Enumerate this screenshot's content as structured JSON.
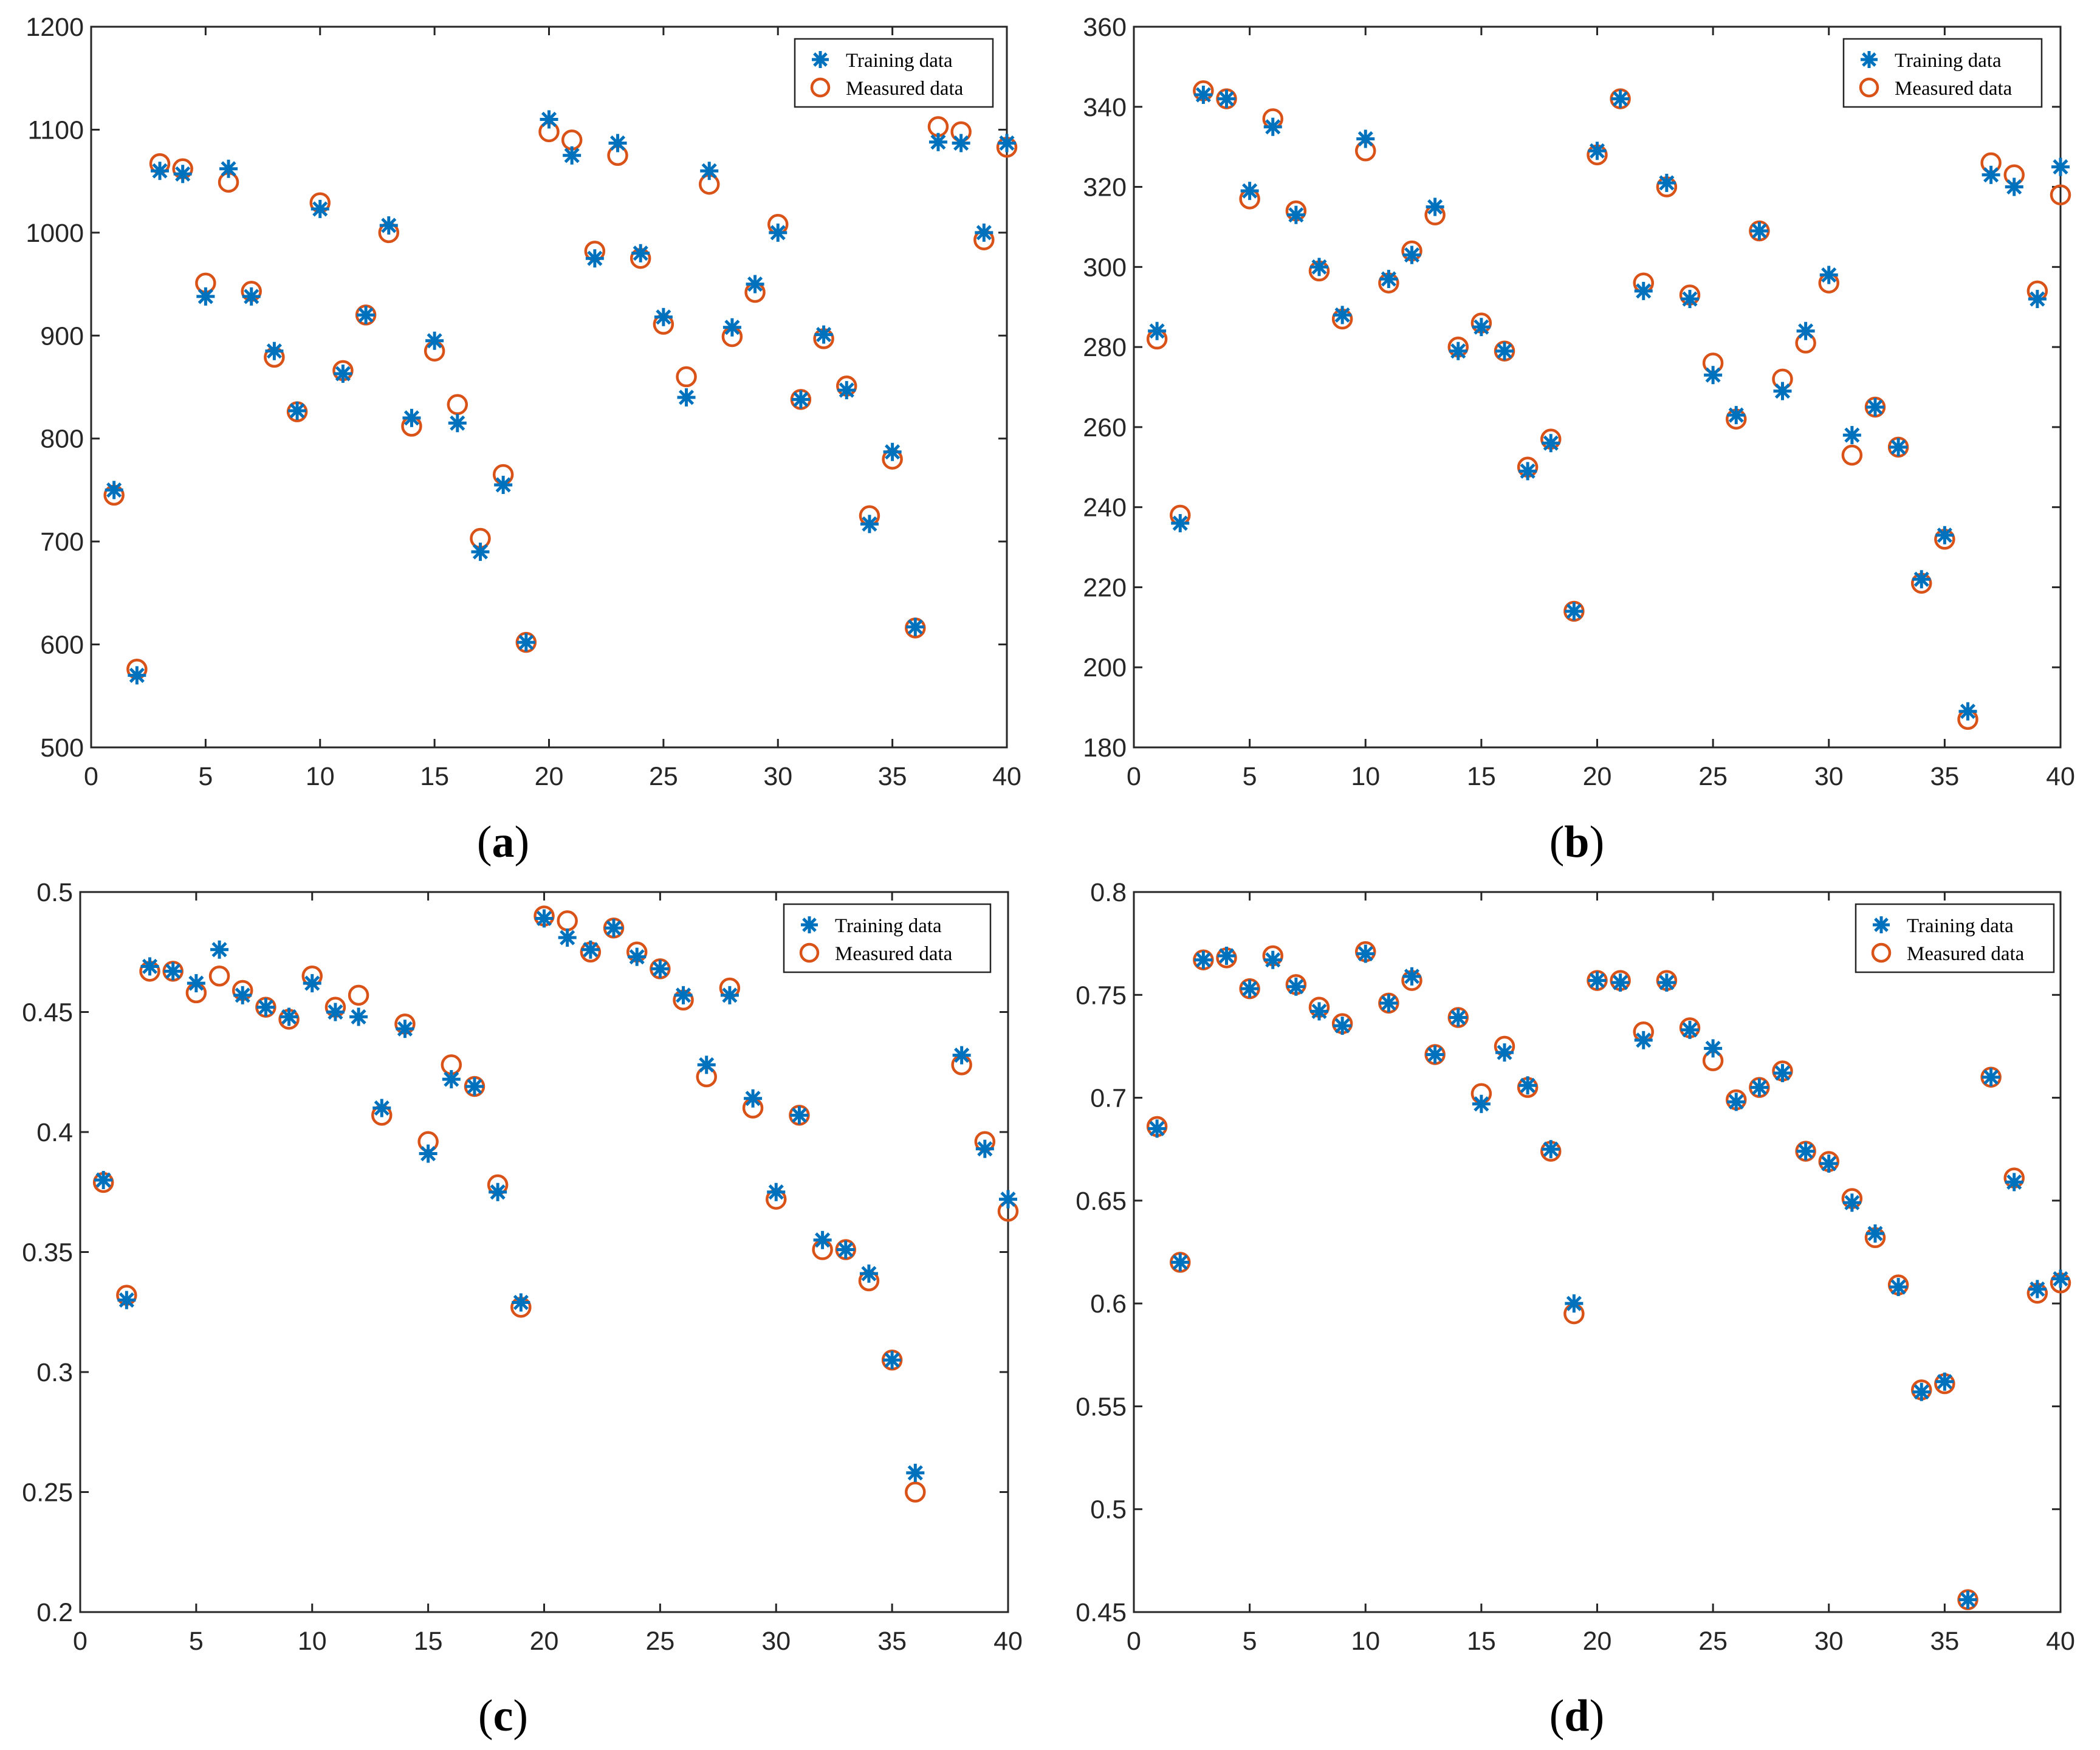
{
  "figure": {
    "marker_colors": {
      "training": "#0072BD",
      "measured": "#D95319",
      "axis": "#262626"
    }
  },
  "chart_data": [
    {
      "id": "a",
      "type": "scatter",
      "caption": "(a)",
      "title": "",
      "xlabel": "",
      "ylabel": "",
      "xlim": [
        0,
        40
      ],
      "ylim": [
        500,
        1200
      ],
      "xticks": [
        0,
        5,
        10,
        15,
        20,
        25,
        30,
        35,
        40
      ],
      "yticks": [
        500,
        600,
        700,
        800,
        900,
        1000,
        1100,
        1200
      ],
      "ytick_labels": [
        "500",
        "600",
        "700",
        "800",
        "900",
        "1000",
        "1100",
        "1200"
      ],
      "legend_position": "top-right",
      "x": [
        1,
        2,
        3,
        4,
        5,
        6,
        7,
        8,
        9,
        10,
        11,
        12,
        13,
        14,
        15,
        16,
        17,
        18,
        19,
        20,
        21,
        22,
        23,
        24,
        25,
        26,
        27,
        28,
        29,
        30,
        31,
        32,
        33,
        34,
        35,
        36,
        37,
        38,
        39,
        40
      ],
      "series": [
        {
          "name": "Training data",
          "marker": "asterisk",
          "values": [
            750,
            570,
            1060,
            1057,
            938,
            1062,
            938,
            885,
            827,
            1023,
            863,
            920,
            1007,
            820,
            895,
            815,
            690,
            755,
            602,
            1110,
            1075,
            975,
            1087,
            980,
            918,
            840,
            1060,
            908,
            950,
            1000,
            838,
            901,
            847,
            717,
            787,
            617,
            1088,
            1087,
            1000,
            1087
          ]
        },
        {
          "name": "Measured data",
          "marker": "circle",
          "values": [
            745,
            576,
            1067,
            1062,
            951,
            1049,
            943,
            879,
            826,
            1029,
            866,
            920,
            1000,
            812,
            885,
            833,
            703,
            765,
            602,
            1098,
            1090,
            982,
            1075,
            975,
            911,
            860,
            1047,
            899,
            942,
            1008,
            838,
            897,
            851,
            725,
            780,
            616,
            1103,
            1098,
            993,
            1083
          ]
        }
      ]
    },
    {
      "id": "b",
      "type": "scatter",
      "caption": "(b)",
      "title": "",
      "xlabel": "",
      "ylabel": "",
      "xlim": [
        0,
        40
      ],
      "ylim": [
        180,
        360
      ],
      "xticks": [
        0,
        5,
        10,
        15,
        20,
        25,
        30,
        35,
        40
      ],
      "yticks": [
        180,
        200,
        220,
        240,
        260,
        280,
        300,
        320,
        340,
        360
      ],
      "ytick_labels": [
        "180",
        "200",
        "220",
        "240",
        "260",
        "280",
        "300",
        "320",
        "340",
        "360"
      ],
      "legend_position": "top-right",
      "x": [
        1,
        2,
        3,
        4,
        5,
        6,
        7,
        8,
        9,
        10,
        11,
        12,
        13,
        14,
        15,
        16,
        17,
        18,
        19,
        20,
        21,
        22,
        23,
        24,
        25,
        26,
        27,
        28,
        29,
        30,
        31,
        32,
        33,
        34,
        35,
        36,
        37,
        38,
        39,
        40
      ],
      "series": [
        {
          "name": "Training data",
          "marker": "asterisk",
          "values": [
            284,
            236,
            343,
            342,
            319,
            335,
            313,
            300,
            288,
            332,
            297,
            303,
            315,
            279,
            285,
            279,
            249,
            256,
            214,
            329,
            342,
            294,
            321,
            292,
            273,
            263,
            309,
            269,
            284,
            298,
            258,
            265,
            255,
            222,
            233,
            189,
            323,
            320,
            292,
            325
          ]
        },
        {
          "name": "Measured data",
          "marker": "circle",
          "values": [
            282,
            238,
            344,
            342,
            317,
            337,
            314,
            299,
            287,
            329,
            296,
            304,
            313,
            280,
            286,
            279,
            250,
            257,
            214,
            328,
            342,
            296,
            320,
            293,
            276,
            262,
            309,
            272,
            281,
            296,
            253,
            265,
            255,
            221,
            232,
            187,
            326,
            323,
            294,
            318
          ]
        }
      ]
    },
    {
      "id": "c",
      "type": "scatter",
      "caption": "(c)",
      "title": "",
      "xlabel": "",
      "ylabel": "",
      "xlim": [
        0,
        40
      ],
      "ylim": [
        0.2,
        0.5
      ],
      "xticks": [
        0,
        5,
        10,
        15,
        20,
        25,
        30,
        35,
        40
      ],
      "yticks": [
        0.2,
        0.25,
        0.3,
        0.35,
        0.4,
        0.45,
        0.5
      ],
      "ytick_labels": [
        "0.2",
        "0.25",
        "0.3",
        "0.35",
        "0.4",
        "0.45",
        "0.5"
      ],
      "legend_position": "top-right",
      "x": [
        1,
        2,
        3,
        4,
        5,
        6,
        7,
        8,
        9,
        10,
        11,
        12,
        13,
        14,
        15,
        16,
        17,
        18,
        19,
        20,
        21,
        22,
        23,
        24,
        25,
        26,
        27,
        28,
        29,
        30,
        31,
        32,
        33,
        34,
        35,
        36,
        37,
        38,
        39,
        40
      ],
      "series": [
        {
          "name": "Training data",
          "marker": "asterisk",
          "values": [
            0.38,
            0.33,
            0.469,
            0.467,
            0.462,
            0.476,
            0.457,
            0.452,
            0.448,
            0.462,
            0.45,
            0.448,
            0.41,
            0.443,
            0.391,
            0.422,
            0.419,
            0.375,
            0.329,
            0.489,
            0.481,
            0.476,
            0.485,
            0.473,
            0.468,
            0.457,
            0.428,
            0.457,
            0.414,
            0.375,
            0.407,
            0.355,
            0.351,
            0.341,
            0.305,
            0.258,
            null,
            0.432,
            0.393,
            0.372
          ]
        },
        {
          "name": "Measured data",
          "marker": "circle",
          "values": [
            0.379,
            0.332,
            0.467,
            0.467,
            0.458,
            0.465,
            0.459,
            0.452,
            0.447,
            0.465,
            0.452,
            0.457,
            0.407,
            0.445,
            0.396,
            0.428,
            0.419,
            0.378,
            0.327,
            0.49,
            0.488,
            0.475,
            0.485,
            0.475,
            0.468,
            0.455,
            0.423,
            0.46,
            0.41,
            0.372,
            0.407,
            0.351,
            0.351,
            0.338,
            0.305,
            0.25,
            null,
            0.428,
            0.396,
            0.367
          ]
        }
      ]
    },
    {
      "id": "d",
      "type": "scatter",
      "caption": "(d)",
      "title": "",
      "xlabel": "",
      "ylabel": "",
      "xlim": [
        0,
        40
      ],
      "ylim": [
        0.45,
        0.8
      ],
      "xticks": [
        0,
        5,
        10,
        15,
        20,
        25,
        30,
        35,
        40
      ],
      "yticks": [
        0.45,
        0.5,
        0.55,
        0.6,
        0.65,
        0.7,
        0.75,
        0.8
      ],
      "ytick_labels": [
        "0.45",
        "0.5",
        "0.55",
        "0.6",
        "0.65",
        "0.7",
        "0.75",
        "0.8"
      ],
      "legend_position": "top-right",
      "x": [
        1,
        2,
        3,
        4,
        5,
        6,
        7,
        8,
        9,
        10,
        11,
        12,
        13,
        14,
        15,
        16,
        17,
        18,
        19,
        20,
        21,
        22,
        23,
        24,
        25,
        26,
        27,
        28,
        29,
        30,
        31,
        32,
        33,
        34,
        35,
        36,
        37,
        38,
        39,
        40
      ],
      "series": [
        {
          "name": "Training data",
          "marker": "asterisk",
          "values": [
            0.685,
            0.62,
            0.767,
            0.769,
            0.753,
            0.767,
            0.754,
            0.742,
            0.735,
            0.77,
            0.746,
            0.759,
            0.721,
            0.739,
            0.697,
            0.722,
            0.706,
            0.675,
            0.6,
            0.757,
            0.756,
            0.728,
            0.756,
            0.733,
            0.724,
            0.698,
            0.705,
            0.712,
            0.674,
            0.668,
            0.649,
            0.634,
            0.608,
            0.557,
            0.562,
            0.456,
            0.71,
            0.659,
            0.607,
            0.612
          ]
        },
        {
          "name": "Measured data",
          "marker": "circle",
          "values": [
            0.686,
            0.62,
            0.767,
            0.768,
            0.753,
            0.769,
            0.755,
            0.744,
            0.736,
            0.771,
            0.746,
            0.757,
            0.721,
            0.739,
            0.702,
            0.725,
            0.705,
            0.674,
            0.595,
            0.757,
            0.757,
            0.732,
            0.757,
            0.734,
            0.718,
            0.699,
            0.705,
            0.713,
            0.674,
            0.669,
            0.651,
            0.632,
            0.609,
            0.558,
            0.561,
            0.456,
            0.71,
            0.661,
            0.605,
            0.61
          ]
        }
      ]
    }
  ]
}
